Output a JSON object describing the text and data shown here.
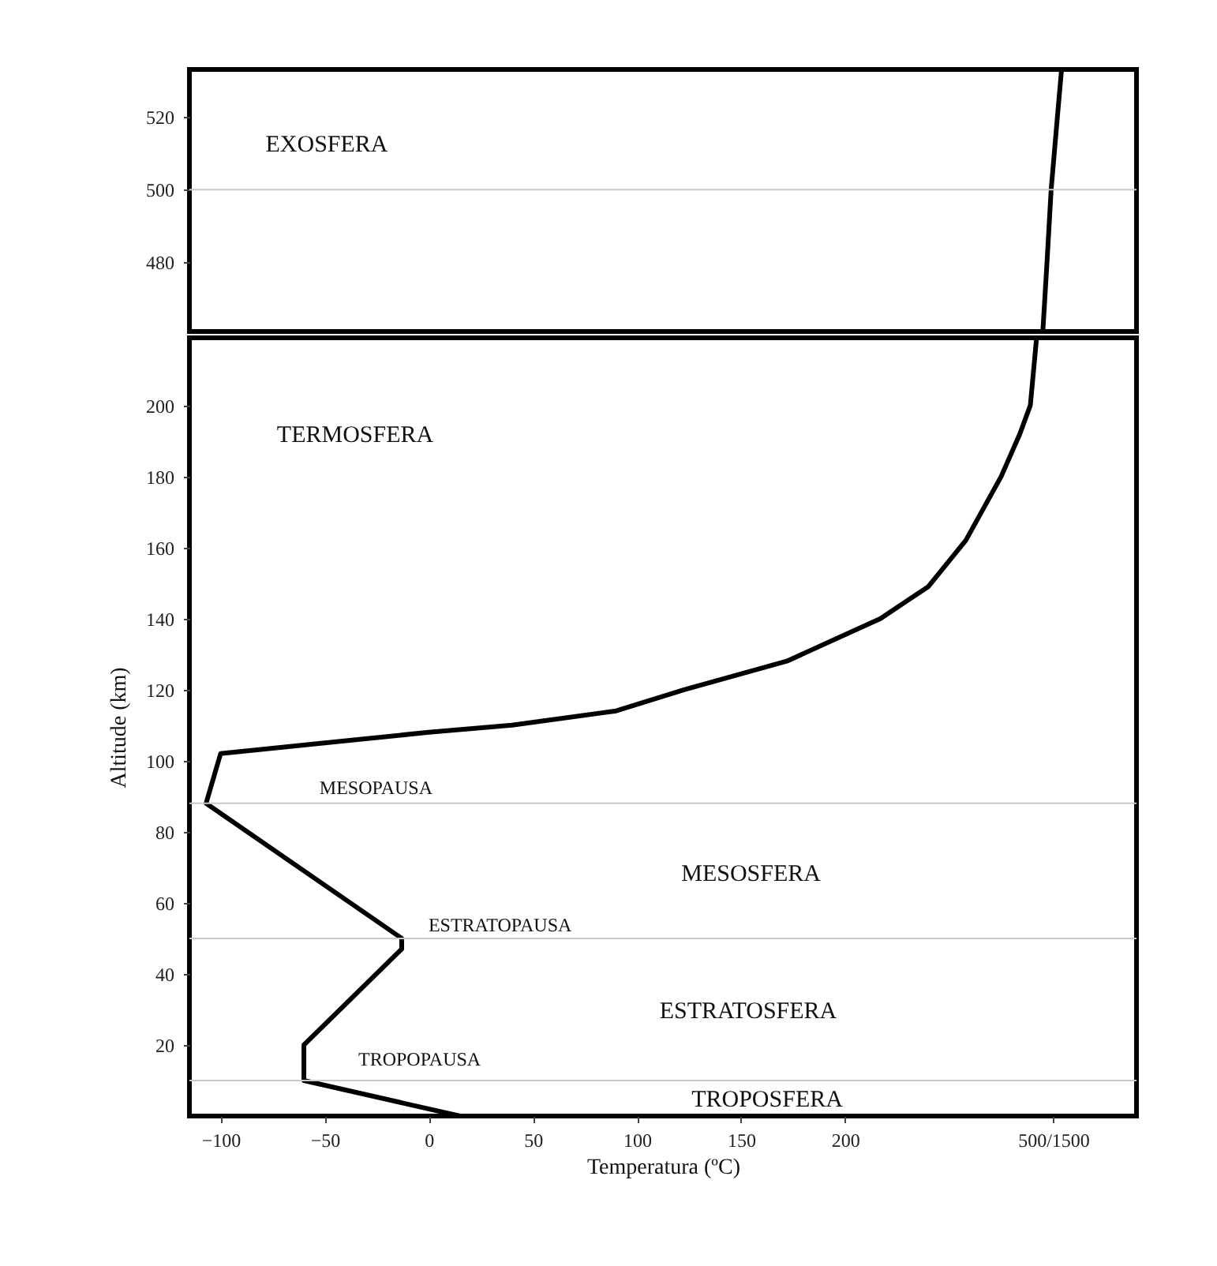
{
  "chart_data": [
    {
      "type": "line",
      "tick_labels": "y",
      "xlim": [
        -115,
        340
      ],
      "ylim": [
        461,
        533
      ],
      "yticks": [
        480,
        500,
        520
      ],
      "series": [
        {
          "color": "#000000",
          "x": [
            295,
            297,
            299,
            302,
            304
          ],
          "values": [
            461,
            480,
            500,
            520,
            533
          ]
        }
      ],
      "ref_lines": [
        {
          "axis": "y",
          "value": 500,
          "color": "#c8c8c8"
        }
      ],
      "annotations": [
        "EXOSFERA"
      ]
    },
    {
      "type": "line",
      "xlabel": "Temperatura (ºC)",
      "ylabel": "Altitude (km)",
      "xlim": [
        -115,
        340
      ],
      "ylim": [
        0,
        219
      ],
      "xticks": [
        -100,
        -50,
        0,
        50,
        100,
        150,
        200,
        {
          "value": 300,
          "label": "500/1500"
        }
      ],
      "yticks": [
        20,
        40,
        60,
        80,
        100,
        120,
        140,
        160,
        180,
        200
      ],
      "series": [
        {
          "color": "#000000",
          "x": [
            15,
            -60,
            -60,
            -13,
            -13,
            -107,
            -100,
            -50,
            0,
            40,
            90,
            123,
            172,
            217,
            240,
            258,
            275,
            284,
            289,
            292
          ],
          "values": [
            0,
            10,
            20,
            47,
            50,
            88,
            102,
            105,
            108,
            110,
            114,
            120,
            128,
            140,
            149,
            162,
            180,
            192,
            200,
            219
          ]
        }
      ],
      "ref_lines": [
        {
          "axis": "y",
          "value": 10,
          "color": "#c8c8c8"
        },
        {
          "axis": "y",
          "value": 50,
          "color": "#c8c8c8"
        },
        {
          "axis": "y",
          "value": 88,
          "color": "#c8c8c8"
        }
      ],
      "annotations": [
        "TERMOSFERA",
        "MESOPAUSA",
        "MESOSFERA",
        "ESTRATOPAUSA",
        "ESTRATOSFERA",
        "TROPOPAUSA",
        "TROPOSFERA"
      ]
    }
  ]
}
